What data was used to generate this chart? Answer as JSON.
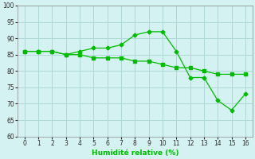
{
  "line1_x": [
    0,
    1,
    2,
    3,
    4,
    5,
    6,
    7,
    8,
    9,
    10,
    11,
    12,
    13,
    14,
    15,
    16
  ],
  "line1_y": [
    86,
    86,
    86,
    85,
    86,
    87,
    87,
    88,
    91,
    92,
    92,
    86,
    78,
    78,
    71,
    68,
    73
  ],
  "line2_x": [
    0,
    1,
    2,
    3,
    4,
    5,
    6,
    7,
    8,
    9,
    10,
    11,
    12,
    13,
    14,
    15,
    16
  ],
  "line2_y": [
    86,
    86,
    86,
    85,
    85,
    84,
    84,
    84,
    83,
    83,
    82,
    81,
    81,
    80,
    79,
    79,
    79
  ],
  "line_color": "#00bb00",
  "bg_color": "#d5f2f2",
  "grid_color": "#b0d8d8",
  "xlabel": "Humidité relative (%)",
  "xlim": [
    -0.5,
    16.5
  ],
  "ylim": [
    60,
    100
  ],
  "yticks": [
    60,
    65,
    70,
    75,
    80,
    85,
    90,
    95,
    100
  ],
  "xticks": [
    0,
    1,
    2,
    3,
    4,
    5,
    6,
    7,
    8,
    9,
    10,
    11,
    12,
    13,
    14,
    15,
    16
  ]
}
